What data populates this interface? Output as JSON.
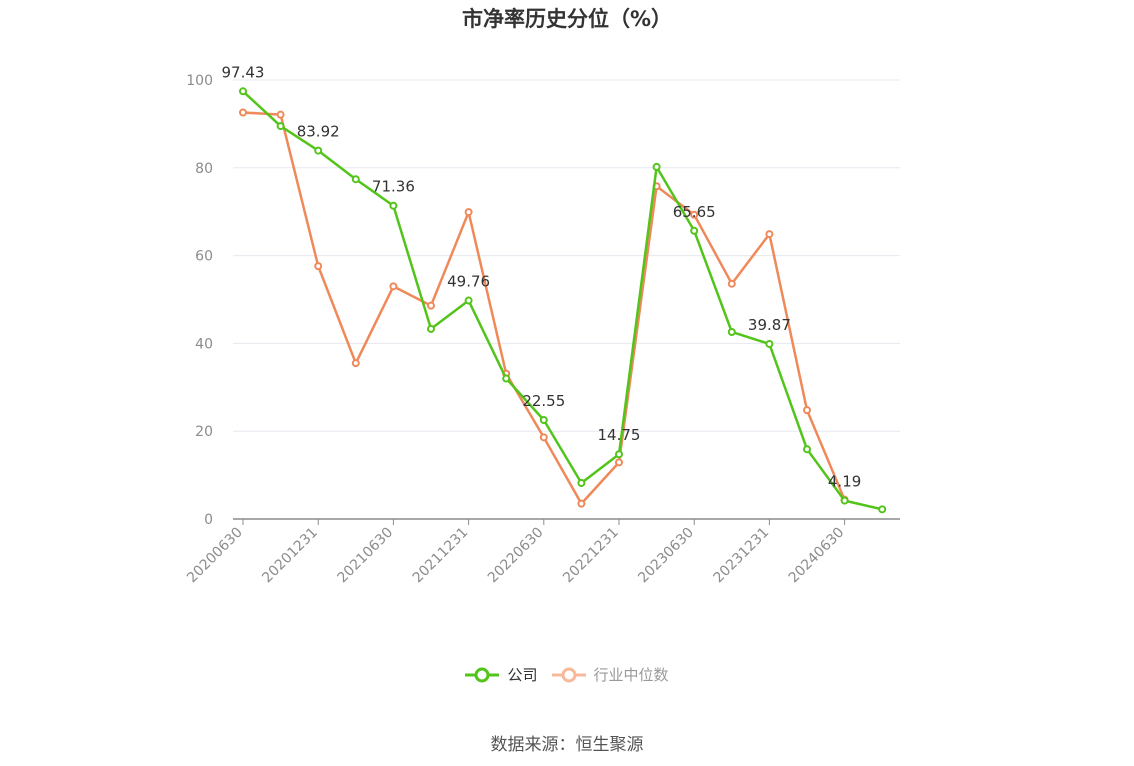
{
  "chart_data": {
    "type": "line",
    "title": "市净率历史分位（%）",
    "ylim": [
      0,
      100
    ],
    "yticks": [
      0,
      20,
      40,
      60,
      80,
      100
    ],
    "x": [
      "20200630",
      "20200930",
      "20201231",
      "20210331",
      "20210630",
      "20210930",
      "20211231",
      "20220331",
      "20220630",
      "20220930",
      "20221231",
      "20230331",
      "20230630",
      "20230930",
      "20231231",
      "20240331",
      "20240630",
      "20240930"
    ],
    "x_tick_labels": [
      "20200630",
      "20201231",
      "20210630",
      "20211231",
      "20220630",
      "20221231",
      "20230630",
      "20231231",
      "20240630"
    ],
    "grid": true,
    "legend_position": "bottom-center",
    "series": [
      {
        "name": "公司",
        "color": "#52c41a",
        "values": [
          97.43,
          89.5,
          83.92,
          77.4,
          71.36,
          43.3,
          49.76,
          32.0,
          22.55,
          8.2,
          14.75,
          80.2,
          65.65,
          42.6,
          39.87,
          15.9,
          4.19,
          2.2
        ],
        "labeled_indices": [
          0,
          2,
          4,
          6,
          8,
          10,
          12,
          14,
          16
        ]
      },
      {
        "name": "行业中位数",
        "color": "#f0895a",
        "legend_color": "#f8b99a",
        "values": [
          92.6,
          92.1,
          57.6,
          35.5,
          53.0,
          48.6,
          69.9,
          33.1,
          18.6,
          3.5,
          12.9,
          75.8,
          69.3,
          53.6,
          64.9,
          24.8,
          4.4,
          null
        ]
      }
    ]
  },
  "legend": {
    "company_label": "公司",
    "industry_label": "行业中位数"
  },
  "source_text": "数据来源：恒生聚源"
}
